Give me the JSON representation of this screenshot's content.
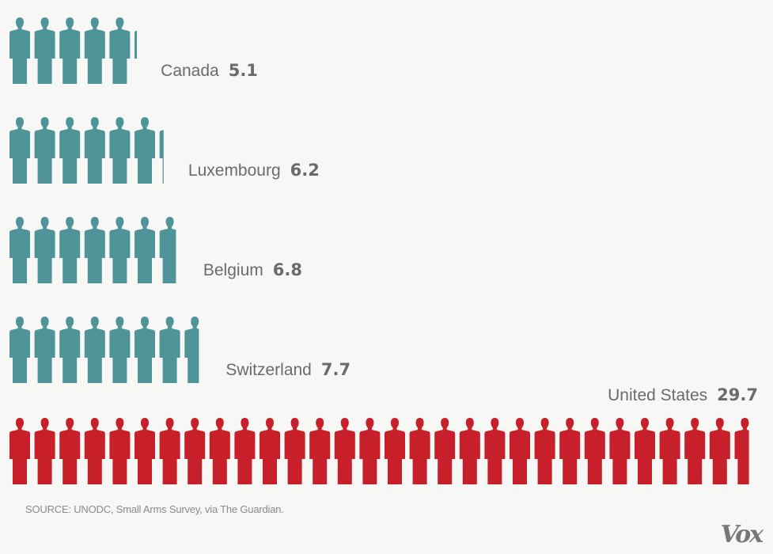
{
  "chart_data": {
    "type": "pictogram",
    "categories": [
      "Canada",
      "Luxembourg",
      "Belgium",
      "Switzerland",
      "United States"
    ],
    "values": [
      5.1,
      6.2,
      6.8,
      7.7,
      29.7
    ],
    "value_labels": [
      "5.1",
      "6.2",
      "6.8",
      "7.7",
      "29.7"
    ],
    "colors": [
      "#4f9499",
      "#4f9499",
      "#4f9499",
      "#4f9499",
      "#c8202a"
    ],
    "unit_icon": "person-icon",
    "title": "",
    "xlabel": "",
    "ylabel": ""
  },
  "source": "SOURCE: UNODC, Small Arms Survey, via The Guardian.",
  "logo": "Vox"
}
